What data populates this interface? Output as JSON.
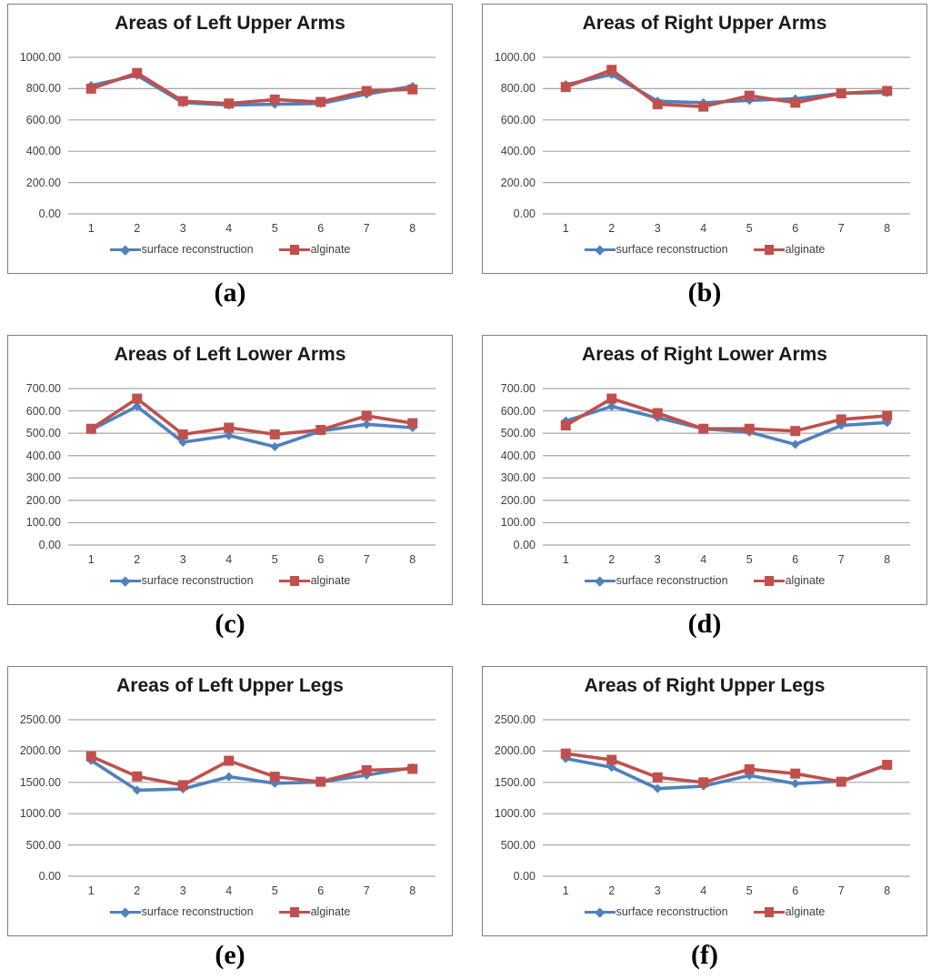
{
  "page": {
    "background": "#ffffff"
  },
  "style": {
    "gridline_color": "#a6a6a6",
    "panel_border_color": "#7f7f7f",
    "title_color": "#1a1a1a",
    "tick_color": "#3f3f3f",
    "series_colors": {
      "surface_reconstruction": "#4f81bd",
      "alginate": "#c0504d"
    }
  },
  "chart_data": [
    {
      "id": "a",
      "type": "line",
      "title": "Areas of Left Upper Arms",
      "sublabel": "(a)",
      "categories": [
        "1",
        "2",
        "3",
        "4",
        "5",
        "6",
        "7",
        "8"
      ],
      "ylim": [
        0,
        1000
      ],
      "ytick_step": 200,
      "ytick_labels": [
        "1000.00",
        "800.00",
        "600.00",
        "400.00",
        "200.00",
        "0.00"
      ],
      "grid": true,
      "legend_position": "bottom",
      "series": [
        {
          "name": "surface reconstruction",
          "color": "#4f81bd",
          "marker": "diamond",
          "values": [
            820,
            885,
            710,
            695,
            700,
            705,
            765,
            815
          ]
        },
        {
          "name": "alginate",
          "color": "#c0504d",
          "marker": "square",
          "values": [
            800,
            900,
            720,
            705,
            730,
            715,
            785,
            795
          ]
        }
      ]
    },
    {
      "id": "b",
      "type": "line",
      "title": "Areas of Right Upper Arms",
      "sublabel": "(b)",
      "categories": [
        "1",
        "2",
        "3",
        "4",
        "5",
        "6",
        "7",
        "8"
      ],
      "ylim": [
        0,
        1000
      ],
      "ytick_step": 200,
      "ytick_labels": [
        "1000.00",
        "800.00",
        "600.00",
        "400.00",
        "200.00",
        "0.00"
      ],
      "grid": true,
      "legend_position": "bottom",
      "series": [
        {
          "name": "surface reconstruction",
          "color": "#4f81bd",
          "marker": "diamond",
          "values": [
            825,
            890,
            720,
            710,
            725,
            735,
            770,
            775
          ]
        },
        {
          "name": "alginate",
          "color": "#c0504d",
          "marker": "square",
          "values": [
            810,
            920,
            700,
            685,
            755,
            710,
            770,
            785
          ]
        }
      ]
    },
    {
      "id": "c",
      "type": "line",
      "title": "Areas of Left Lower Arms",
      "sublabel": "(c)",
      "categories": [
        "1",
        "2",
        "3",
        "4",
        "5",
        "6",
        "7",
        "8"
      ],
      "ylim": [
        0,
        700
      ],
      "ytick_step": 100,
      "ytick_labels": [
        "700.00",
        "600.00",
        "500.00",
        "400.00",
        "300.00",
        "200.00",
        "100.00",
        "0.00"
      ],
      "grid": true,
      "legend_position": "bottom",
      "series": [
        {
          "name": "surface reconstruction",
          "color": "#4f81bd",
          "marker": "diamond",
          "values": [
            515,
            620,
            460,
            490,
            440,
            510,
            540,
            525
          ]
        },
        {
          "name": "alginate",
          "color": "#c0504d",
          "marker": "square",
          "values": [
            520,
            655,
            495,
            525,
            495,
            515,
            578,
            545
          ]
        }
      ]
    },
    {
      "id": "d",
      "type": "line",
      "title": "Areas of Right Lower Arms",
      "sublabel": "(d)",
      "categories": [
        "1",
        "2",
        "3",
        "4",
        "5",
        "6",
        "7",
        "8"
      ],
      "ylim": [
        0,
        700
      ],
      "ytick_step": 100,
      "ytick_labels": [
        "700.00",
        "600.00",
        "500.00",
        "400.00",
        "300.00",
        "200.00",
        "100.00",
        "0.00"
      ],
      "grid": true,
      "legend_position": "bottom",
      "series": [
        {
          "name": "surface reconstruction",
          "color": "#4f81bd",
          "marker": "diamond",
          "values": [
            555,
            620,
            570,
            520,
            505,
            450,
            535,
            548
          ]
        },
        {
          "name": "alginate",
          "color": "#c0504d",
          "marker": "square",
          "values": [
            535,
            655,
            590,
            520,
            520,
            510,
            562,
            578
          ]
        }
      ]
    },
    {
      "id": "e",
      "type": "line",
      "title": "Areas of Left Upper Legs",
      "sublabel": "(e)",
      "categories": [
        "1",
        "2",
        "3",
        "4",
        "5",
        "6",
        "7",
        "8"
      ],
      "ylim": [
        0,
        2500
      ],
      "ytick_step": 500,
      "ytick_labels": [
        "2500.00",
        "2000.00",
        "1500.00",
        "1000.00",
        "500.00",
        "0.00"
      ],
      "grid": true,
      "legend_position": "bottom",
      "series": [
        {
          "name": "surface reconstruction",
          "color": "#4f81bd",
          "marker": "diamond",
          "values": [
            1850,
            1375,
            1395,
            1590,
            1485,
            1505,
            1615,
            1735
          ]
        },
        {
          "name": "alginate",
          "color": "#c0504d",
          "marker": "square",
          "values": [
            1915,
            1595,
            1455,
            1845,
            1590,
            1510,
            1695,
            1715
          ]
        }
      ]
    },
    {
      "id": "f",
      "type": "line",
      "title": "Areas of Right Upper Legs",
      "sublabel": "(f)",
      "categories": [
        "1",
        "2",
        "3",
        "4",
        "5",
        "6",
        "7",
        "8"
      ],
      "ylim": [
        0,
        2500
      ],
      "ytick_step": 500,
      "ytick_labels": [
        "2500.00",
        "2000.00",
        "1500.00",
        "1000.00",
        "500.00",
        "0.00"
      ],
      "grid": true,
      "legend_position": "bottom",
      "series": [
        {
          "name": "surface reconstruction",
          "color": "#4f81bd",
          "marker": "diamond",
          "values": [
            1880,
            1740,
            1400,
            1440,
            1610,
            1480,
            1520,
            1780
          ]
        },
        {
          "name": "alginate",
          "color": "#c0504d",
          "marker": "square",
          "values": [
            1960,
            1860,
            1580,
            1500,
            1710,
            1640,
            1510,
            1780
          ]
        }
      ]
    }
  ]
}
